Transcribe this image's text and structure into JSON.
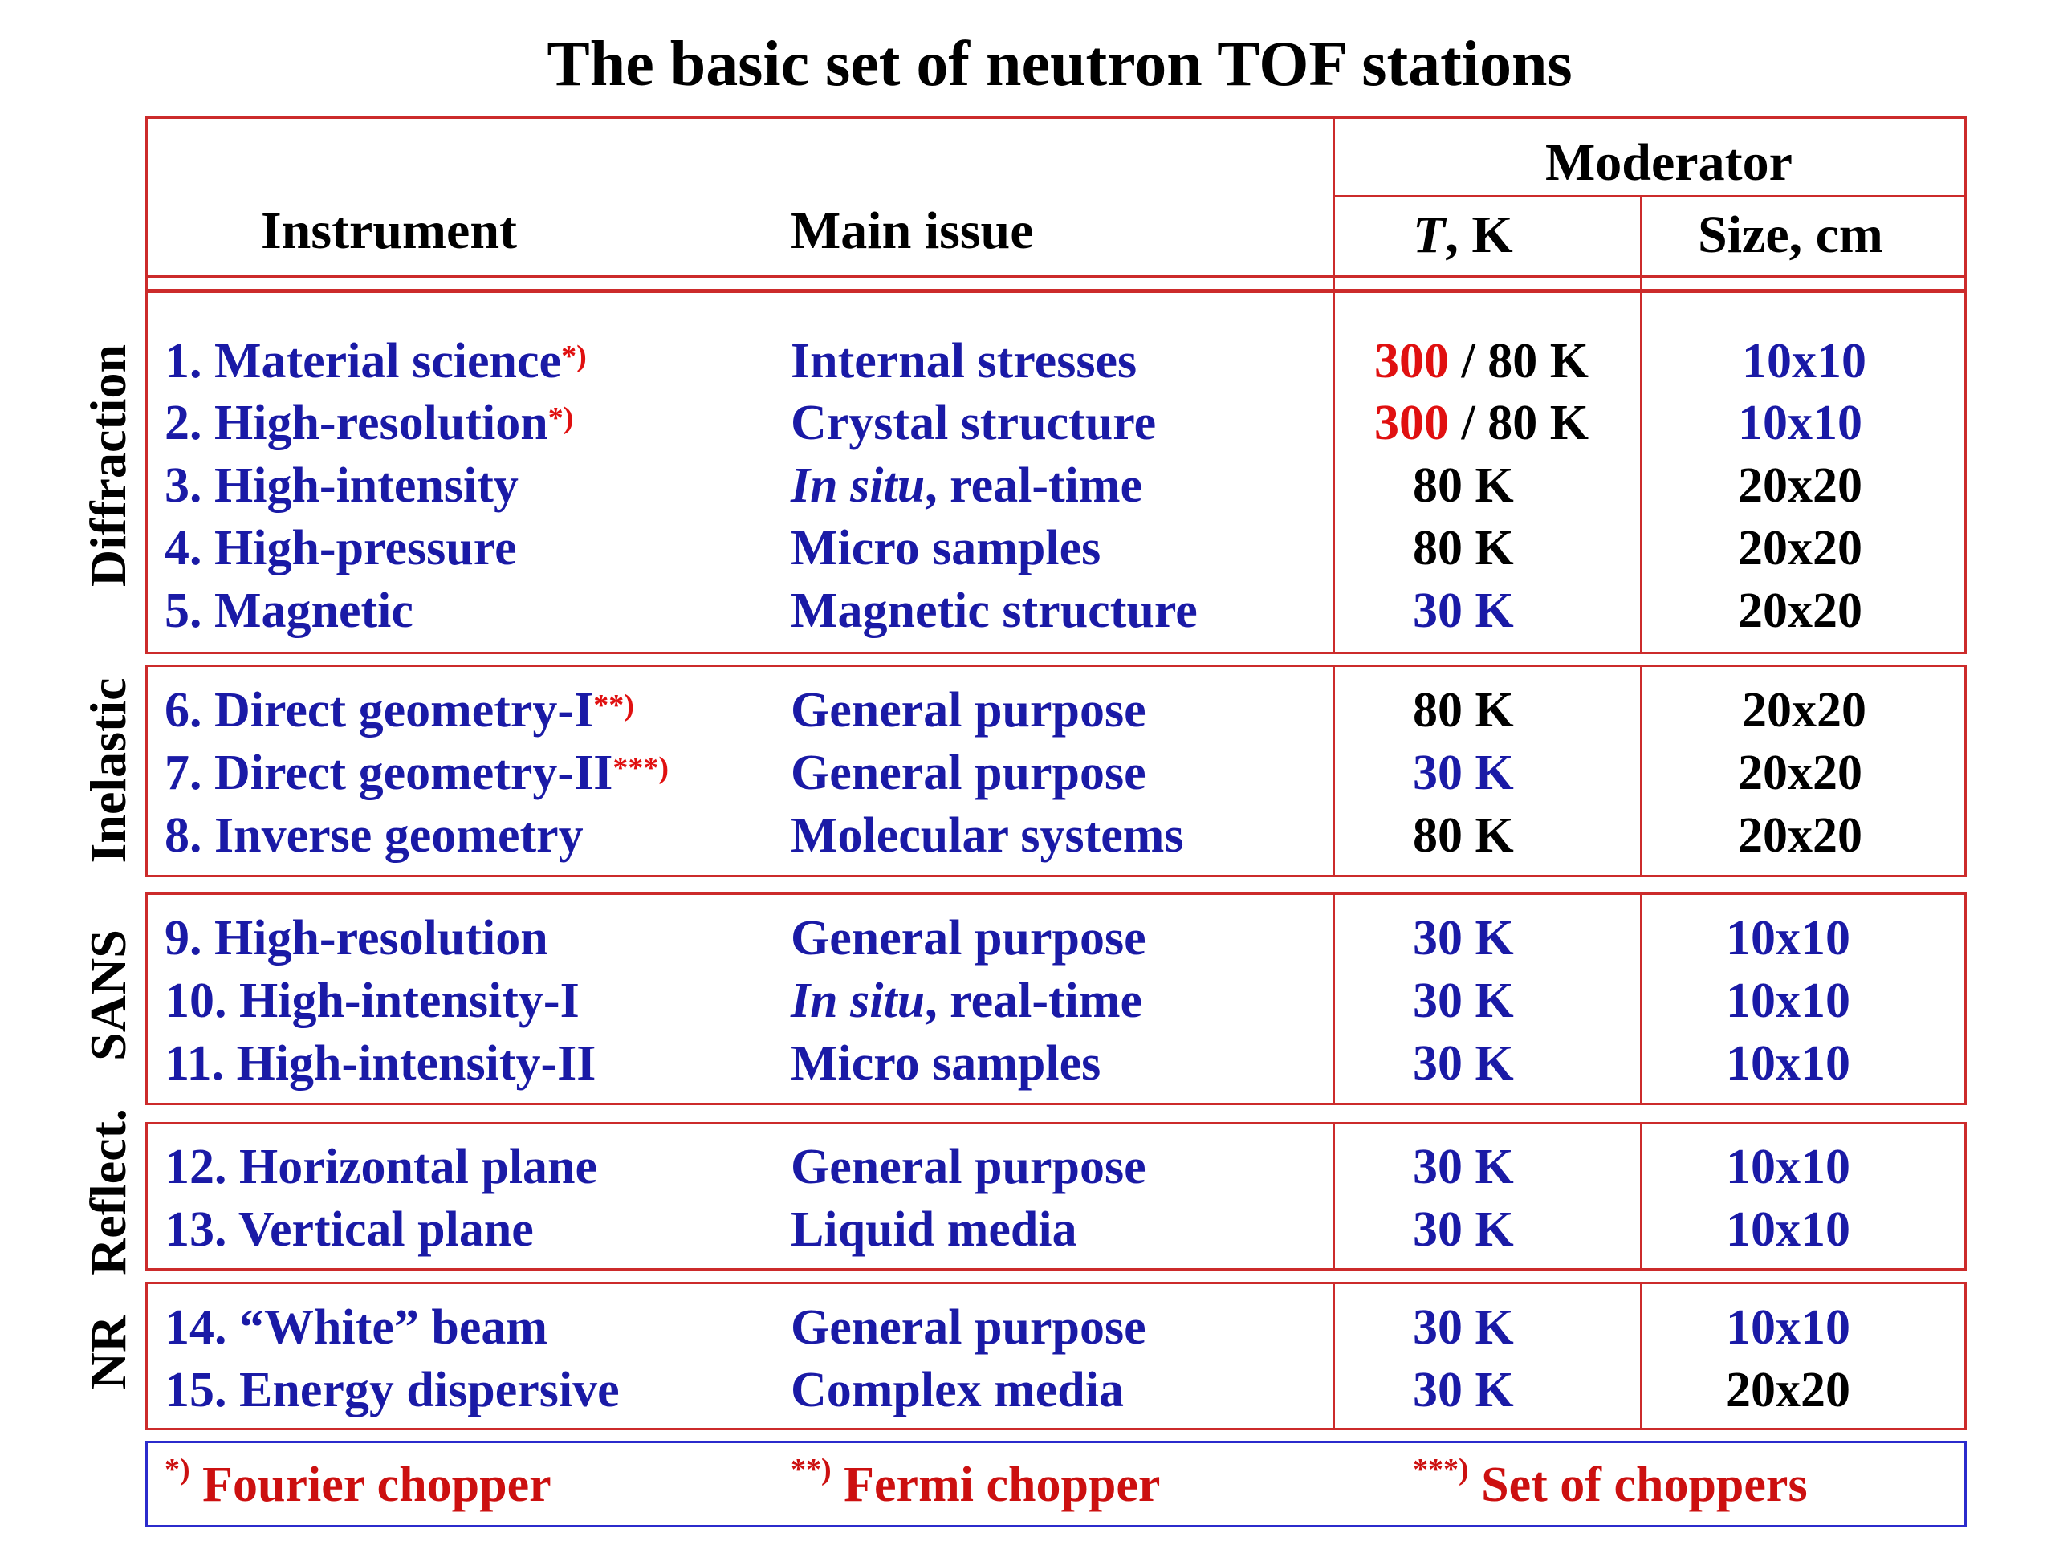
{
  "title": "The basic set of neutron TOF stations",
  "header": {
    "instrument": "Instrument",
    "main_issue": "Main issue",
    "moderator": "Moderator",
    "temperature_italic": "T",
    "temperature_rest": ", K",
    "size": "Size, cm"
  },
  "categories": [
    "Diffraction",
    "Inelastic",
    "SANS",
    "Reflect.",
    "NR"
  ],
  "rows": [
    {
      "instrument": "1.  Material science",
      "mark": "*)",
      "issue": "Internal stresses",
      "t_red": "300",
      "t_rest": " / 80 K",
      "size": "10x10"
    },
    {
      "instrument": "2.  High-resolution",
      "mark": "*)",
      "issue": "Crystal structure",
      "t_red": "300",
      "t_rest": " / 80 K",
      "size": "10x10"
    },
    {
      "instrument": "3.  High-intensity",
      "issue_italic": "In situ",
      "issue": ", real-time",
      "t": "80 K",
      "size": "20x20"
    },
    {
      "instrument": "4.  High-pressure",
      "issue": "Micro samples",
      "t": "80 K",
      "size": "20x20"
    },
    {
      "instrument": "5.  Magnetic",
      "issue": "Magnetic structure",
      "t": "30 K",
      "size": "20x20"
    },
    {
      "instrument": "6.  Direct geometry-I",
      "mark": "**)",
      "issue": "General purpose",
      "t": "80 K",
      "size": "20x20"
    },
    {
      "instrument": "7.  Direct geometry-II",
      "mark": "***)",
      "issue": "General purpose",
      "t": "30 K",
      "size": "20x20"
    },
    {
      "instrument": "8.  Inverse geometry",
      "issue": "Molecular systems",
      "t": "80 K",
      "size": "20x20"
    },
    {
      "instrument": "9.   High-resolution",
      "issue": "General purpose",
      "t": "30 K",
      "size": "10x10"
    },
    {
      "instrument": "10. High-intensity-I",
      "issue_italic": "In situ",
      "issue": ", real-time",
      "t": "30 K",
      "size": "10x10"
    },
    {
      "instrument": "11. High-intensity-II",
      "issue": "Micro samples",
      "t": "30 K",
      "size": "10x10"
    },
    {
      "instrument": "12. Horizontal plane",
      "issue": "General purpose",
      "t": "30 K",
      "size": "10x10"
    },
    {
      "instrument": "13. Vertical plane",
      "issue": "Liquid media",
      "t": "30 K",
      "size": "10x10"
    },
    {
      "instrument": "14. “White” beam",
      "issue": "General purpose",
      "t": "30 K",
      "size": "10x10"
    },
    {
      "instrument": "15. Energy dispersive",
      "issue": "Complex media",
      "t": "30 K",
      "size": "20x20"
    }
  ],
  "notes": [
    {
      "mark": "*)",
      "text": " Fourier chopper"
    },
    {
      "mark": "**)",
      "text": " Fermi chopper"
    },
    {
      "mark": "***)",
      "text": " Set of choppers"
    }
  ],
  "colors": {
    "border": "#cc2b2b",
    "note_border": "#2b2bcc",
    "text_blue": "#1a1aa6",
    "text_red": "#e01010"
  }
}
